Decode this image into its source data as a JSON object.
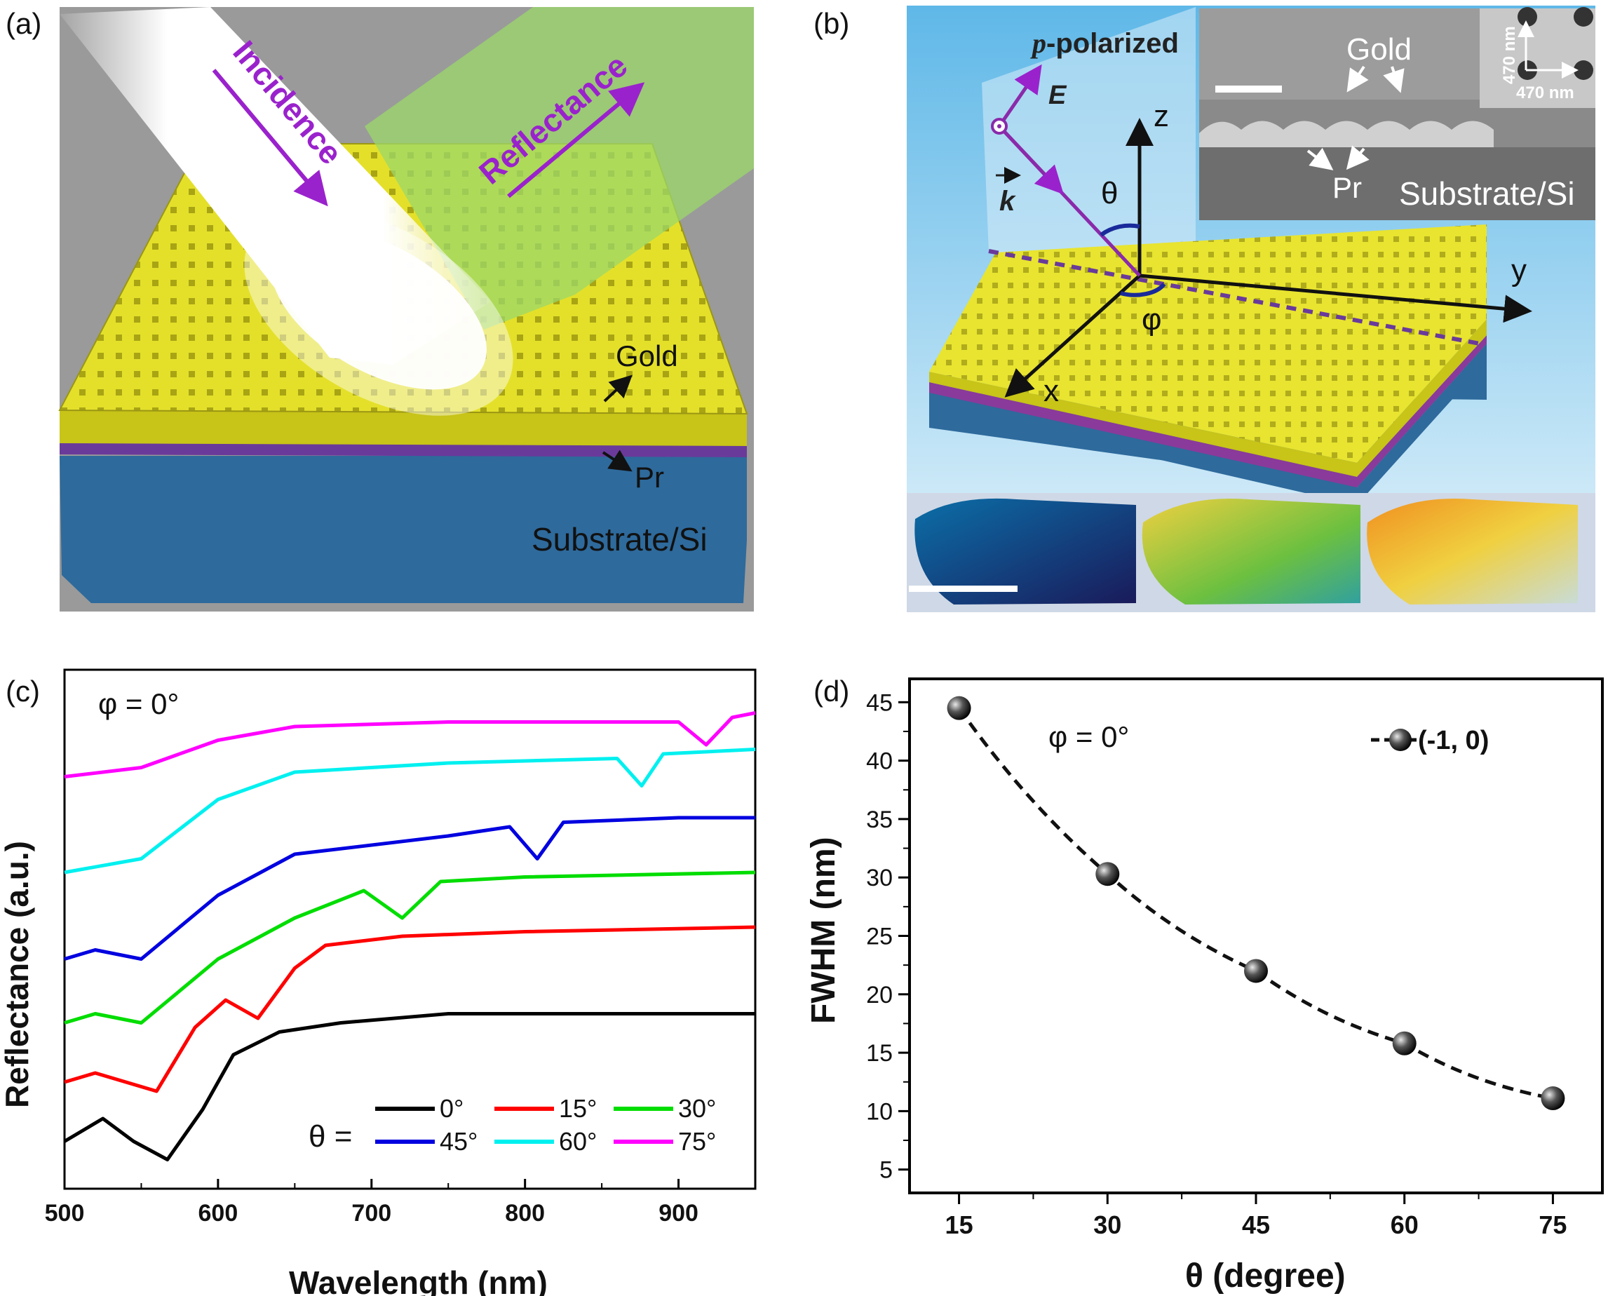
{
  "panels": {
    "a": {
      "label": "(a)",
      "incidence": "Incidence",
      "reflectance": "Reflectance",
      "gold": "Gold",
      "pr": "Pr",
      "substrate": "Substrate/Si"
    },
    "b": {
      "label": "(b)",
      "p_prefix": "p",
      "p_suffix": "-polarized",
      "e_field": "E",
      "k_vec": "k",
      "z": "z",
      "y": "y",
      "x": "x",
      "theta": "θ",
      "phi": "φ",
      "sem_gold": "Gold",
      "sem_pr": "Pr",
      "sem_substrate": "Substrate/Si",
      "inset_v": "470 nm",
      "inset_h": "470 nm"
    },
    "c": {
      "label": "(c)",
      "phi": "φ = 0°",
      "ylabel": "Reflectance (a.u.)",
      "xlabel": "Wavelength (nm)",
      "theta_eq": "θ ="
    },
    "d": {
      "label": "(d)",
      "phi": "φ = 0°",
      "legend": "(-1, 0)",
      "ylabel": "FWHM (nm)",
      "xlabel": "θ (degree)"
    }
  },
  "colors": {
    "t0": "#000000",
    "t15": "#ff0000",
    "t30": "#00dd00",
    "t45": "#0000e0",
    "t60": "#00f0f0",
    "t75": "#ff00ff",
    "purple": "#9a22cc",
    "gold": "#e6e226",
    "substrate": "#2e6a9c"
  },
  "chart_data": [
    {
      "type": "line",
      "title": "φ = 0°",
      "xlabel": "Wavelength (nm)",
      "ylabel": "Reflectance (a.u.)",
      "xlim": [
        500,
        950
      ],
      "xticks": [
        500,
        600,
        700,
        800,
        900
      ],
      "ylim": [
        0,
        1
      ],
      "legend_title": "θ =",
      "series": [
        {
          "name": "0°",
          "color": "#000000",
          "x": [
            500,
            525,
            545,
            567,
            590,
            610,
            640,
            680,
            750,
            850,
            950
          ],
          "y": [
            0.05,
            0.1,
            0.05,
            0.01,
            0.12,
            0.24,
            0.29,
            0.31,
            0.33,
            0.33,
            0.33
          ]
        },
        {
          "name": "15°",
          "color": "#ff0000",
          "x": [
            500,
            520,
            560,
            585,
            605,
            626,
            650,
            670,
            720,
            800,
            950
          ],
          "y": [
            0.18,
            0.2,
            0.16,
            0.3,
            0.36,
            0.32,
            0.43,
            0.48,
            0.5,
            0.51,
            0.52
          ]
        },
        {
          "name": "30°",
          "color": "#00dd00",
          "x": [
            500,
            520,
            550,
            600,
            650,
            695,
            720,
            745,
            800,
            950
          ],
          "y": [
            0.31,
            0.33,
            0.31,
            0.45,
            0.54,
            0.6,
            0.54,
            0.62,
            0.63,
            0.64
          ]
        },
        {
          "name": "45°",
          "color": "#0000e0",
          "x": [
            500,
            520,
            550,
            600,
            650,
            750,
            790,
            808,
            825,
            900,
            950
          ],
          "y": [
            0.45,
            0.47,
            0.45,
            0.59,
            0.68,
            0.72,
            0.74,
            0.67,
            0.75,
            0.76,
            0.76
          ]
        },
        {
          "name": "60°",
          "color": "#00f0f0",
          "x": [
            500,
            550,
            600,
            650,
            750,
            860,
            876,
            890,
            950
          ],
          "y": [
            0.64,
            0.67,
            0.8,
            0.86,
            0.88,
            0.89,
            0.83,
            0.9,
            0.91
          ]
        },
        {
          "name": "75°",
          "color": "#ff00ff",
          "x": [
            500,
            550,
            600,
            650,
            750,
            900,
            918,
            935,
            950
          ],
          "y": [
            0.85,
            0.87,
            0.93,
            0.96,
            0.97,
            0.97,
            0.92,
            0.98,
            0.99
          ]
        }
      ]
    },
    {
      "type": "scatter",
      "title": "φ = 0°",
      "xlabel": "θ (degree)",
      "ylabel": "FWHM (nm)",
      "xlim": [
        10,
        80
      ],
      "ylim": [
        3,
        47
      ],
      "xticks": [
        15,
        30,
        45,
        60,
        75
      ],
      "yticks": [
        5,
        10,
        15,
        20,
        25,
        30,
        35,
        40,
        45
      ],
      "legend": "(-1, 0)",
      "x": [
        15,
        30,
        45,
        60,
        75
      ],
      "y": [
        44.5,
        30.3,
        22.0,
        15.8,
        11.1
      ]
    }
  ]
}
